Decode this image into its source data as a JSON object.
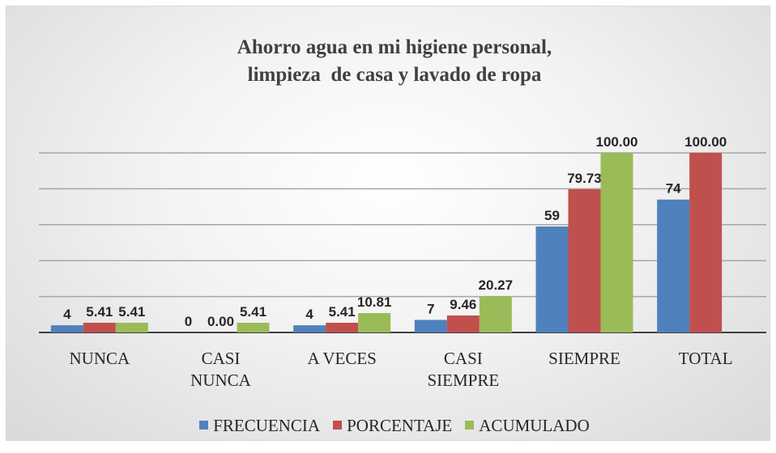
{
  "chart_data": {
    "type": "bar",
    "title": "Ahorro agua en mi higiene personal,\nlimpieza  de casa y lavado de ropa",
    "categories": [
      "NUNCA",
      "CASI NUNCA",
      "A VECES",
      "CASI SIEMPRE",
      "SIEMPRE",
      "TOTAL"
    ],
    "series": [
      {
        "name": "FRECUENCIA",
        "color": "#4f81bd",
        "values": [
          4,
          0,
          4,
          7,
          59,
          74
        ]
      },
      {
        "name": "PORCENTAJE",
        "color": "#c0504d",
        "values": [
          5.41,
          0,
          5.41,
          9.46,
          79.73,
          100
        ],
        "value_labels": [
          "5.41",
          "0.00",
          "5.41",
          "9.46",
          "79.73",
          "100.00"
        ]
      },
      {
        "name": "ACUMULADO",
        "color": "#9bbb59",
        "values": [
          5.41,
          5.41,
          10.81,
          20.27,
          100,
          null
        ],
        "value_labels": [
          "5.41",
          "5.41",
          "10.81",
          "20.27",
          "100.00",
          null
        ]
      }
    ],
    "ylim": [
      0,
      100
    ],
    "yticks": [
      0,
      20,
      40,
      60,
      80,
      100
    ],
    "grid": true,
    "legend": "bottom"
  }
}
